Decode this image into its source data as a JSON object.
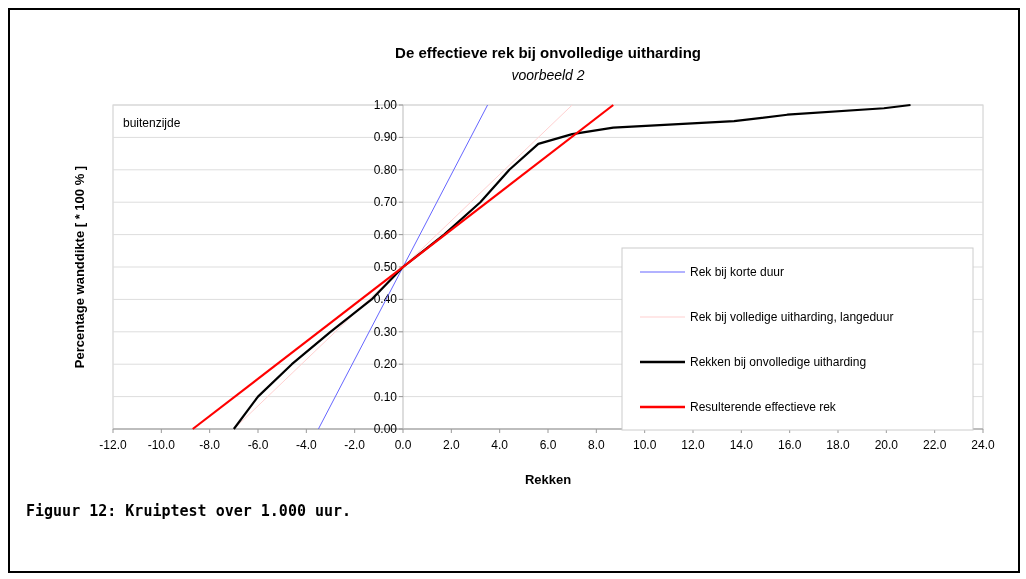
{
  "chart_data": {
    "type": "line",
    "title": "De effectieve rek bij onvolledige uitharding",
    "subtitle": "voorbeeld 2",
    "xlabel": "Rekken",
    "ylabel": "Percentage wanddikte   [ * 100 % ]",
    "annotations": [
      "buitenzijde",
      "Figuur 12: Kruiptest over 1.000 uur."
    ],
    "xlim": [
      -12,
      24
    ],
    "ylim": [
      0,
      1
    ],
    "xticks": [
      {
        "value": -12,
        "label": "-12.0"
      },
      {
        "value": -10,
        "label": "-10.0"
      },
      {
        "value": -8,
        "label": "-8.0"
      },
      {
        "value": -6,
        "label": "-6.0"
      },
      {
        "value": -4,
        "label": "-4.0"
      },
      {
        "value": -2,
        "label": "-2.0"
      },
      {
        "value": 0,
        "label": "0.0"
      },
      {
        "value": 2,
        "label": "2.0"
      },
      {
        "value": 4,
        "label": "4.0"
      },
      {
        "value": 6,
        "label": "6.0"
      },
      {
        "value": 8,
        "label": "8.0"
      },
      {
        "value": 10,
        "label": "10.0"
      },
      {
        "value": 12,
        "label": "12.0"
      },
      {
        "value": 14,
        "label": "14.0"
      },
      {
        "value": 16,
        "label": "16.0"
      },
      {
        "value": 18,
        "label": "18.0"
      },
      {
        "value": 20,
        "label": "20.0"
      },
      {
        "value": 22,
        "label": "22.0"
      },
      {
        "value": 24,
        "label": "24.0"
      }
    ],
    "yticks": [
      {
        "value": 0,
        "label": "0.00"
      },
      {
        "value": 0.1,
        "label": "0.10"
      },
      {
        "value": 0.2,
        "label": "0.20"
      },
      {
        "value": 0.3,
        "label": "0.30"
      },
      {
        "value": 0.4,
        "label": "0.40"
      },
      {
        "value": 0.5,
        "label": "0.50"
      },
      {
        "value": 0.6,
        "label": "0.60"
      },
      {
        "value": 0.7,
        "label": "0.70"
      },
      {
        "value": 0.8,
        "label": "0.80"
      },
      {
        "value": 0.9,
        "label": "0.90"
      },
      {
        "value": 1,
        "label": "1.00"
      }
    ],
    "grid": "y",
    "legend": "bottom right",
    "marker": "none",
    "line_style": "solid",
    "series": [
      {
        "name": "Rek bij korte duur",
        "color": "#6666ff",
        "x": [
          -3.5,
          3.5
        ],
        "values": [
          0,
          1
        ]
      },
      {
        "name": "Rek bij volledige uitharding, langeduur",
        "color": "#ffd0d0",
        "x": [
          -7,
          7
        ],
        "values": [
          0,
          1
        ]
      },
      {
        "name": "Rekken bij onvolledige uitharding",
        "color": "#000000",
        "x": [
          -7,
          -6,
          -4.6,
          -3,
          -1.3,
          0,
          1.7,
          3.2,
          4.4,
          5.6,
          7,
          8.7,
          13.7,
          15.9,
          19.9,
          21
        ],
        "values": [
          0,
          0.1,
          0.2,
          0.3,
          0.4,
          0.5,
          0.6,
          0.7,
          0.8,
          0.88,
          0.91,
          0.93,
          0.95,
          0.97,
          0.99,
          1
        ]
      },
      {
        "name": "Resulterende effectieve rek",
        "color": "#ff0000",
        "x": [
          -8.7,
          8.7
        ],
        "values": [
          0,
          1
        ]
      }
    ]
  }
}
